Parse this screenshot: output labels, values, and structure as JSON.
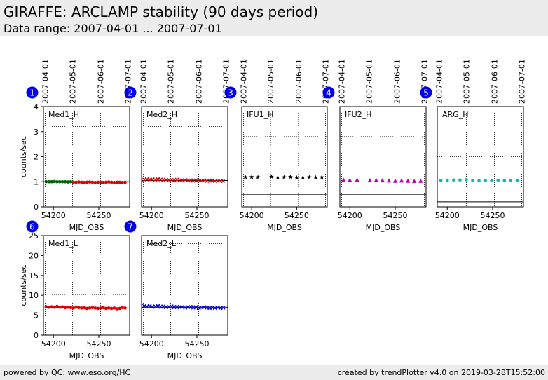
{
  "header": {
    "title": "GIRAFFE: ARCLAMP stability (90 days period)",
    "subtitle": "Data range: 2007-04-01 ... 2007-07-01"
  },
  "footer": {
    "left": "powered by QC: www.eso.org/HC",
    "right": "created by trendPlotter v4.0 on 2019-03-28T15:52:00"
  },
  "colors": {
    "badge": "#0000ee",
    "Med1_H": "#006400",
    "Med2_H": "#dd0000",
    "IFU1_H": "#000000",
    "IFU2_H": "#bb00bb",
    "ARG_H": "#00bbbb",
    "Med1_L": "#dd0000",
    "Med2_L": "#0000cc"
  },
  "chart_data": [
    {
      "type": "scatter",
      "badge": "1",
      "label": "Med1_H",
      "marker": "circle",
      "xlabel": "MJD_OBS",
      "ylabel": "counts/sec",
      "xlim": [
        54189,
        54284
      ],
      "ylim": [
        0,
        4
      ],
      "xticks": [
        54200,
        54250
      ],
      "yticks": [
        0,
        1,
        2,
        3,
        4
      ],
      "date_ticks": [
        {
          "label": "2007-04-01",
          "x": 54191
        },
        {
          "label": "2007-05-01",
          "x": 54221
        },
        {
          "label": "2007-06-01",
          "x": 54252
        },
        {
          "label": "2007-07-01",
          "x": 54282
        }
      ],
      "hlines": [
        1.0,
        3.2
      ],
      "x": [
        54192,
        54195,
        54198,
        54201,
        54204,
        54207,
        54210,
        54213,
        54216,
        54219,
        54222,
        54225,
        54228,
        54231,
        54234,
        54237,
        54240,
        54243,
        54246,
        54249,
        54252,
        54255,
        54258,
        54261,
        54264,
        54267,
        54270,
        54273,
        54276,
        54279
      ],
      "y": [
        1.0,
        1.0,
        1.0,
        1.01,
        1.0,
        1.0,
        1.0,
        1.0,
        0.99,
        1.0,
        0.98,
        0.98,
        0.99,
        0.98,
        0.97,
        0.98,
        0.99,
        0.98,
        0.97,
        0.98,
        0.98,
        0.97,
        0.98,
        0.99,
        0.98,
        0.97,
        0.98,
        0.98,
        0.97,
        0.98
      ],
      "colors": [
        "#006400",
        "#006400",
        "#006400",
        "#006400",
        "#006400",
        "#006400",
        "#006400",
        "#006400",
        "#006400",
        "#006400",
        "#dd0000",
        "#dd0000",
        "#dd0000",
        "#dd0000",
        "#dd0000",
        "#dd0000",
        "#dd0000",
        "#dd0000",
        "#dd0000",
        "#dd0000",
        "#dd0000",
        "#dd0000",
        "#dd0000",
        "#dd0000",
        "#dd0000",
        "#dd0000",
        "#dd0000",
        "#dd0000",
        "#dd0000",
        "#dd0000"
      ]
    },
    {
      "type": "scatter",
      "badge": "2",
      "label": "Med2_H",
      "marker": "x",
      "xlabel": "MJD_OBS",
      "ylabel": "",
      "xlim": [
        54189,
        54284
      ],
      "ylim": [
        0,
        4
      ],
      "xticks": [
        54200,
        54250
      ],
      "yticks": [],
      "date_ticks": [
        {
          "label": "2007-04-01",
          "x": 54191
        },
        {
          "label": "2007-05-01",
          "x": 54221
        },
        {
          "label": "2007-06-01",
          "x": 54252
        },
        {
          "label": "2007-07-01",
          "x": 54282
        }
      ],
      "hlines": [
        1.05,
        3.2
      ],
      "x": [
        54192,
        54195,
        54198,
        54201,
        54204,
        54207,
        54210,
        54213,
        54216,
        54219,
        54222,
        54225,
        54228,
        54231,
        54234,
        54237,
        54240,
        54243,
        54246,
        54249,
        54252,
        54255,
        54258,
        54261,
        54264,
        54267,
        54270,
        54273,
        54276,
        54279
      ],
      "y": [
        1.08,
        1.1,
        1.09,
        1.1,
        1.08,
        1.1,
        1.09,
        1.07,
        1.08,
        1.06,
        1.07,
        1.06,
        1.08,
        1.05,
        1.06,
        1.07,
        1.05,
        1.06,
        1.04,
        1.05,
        1.06,
        1.04,
        1.05,
        1.03,
        1.04,
        1.05,
        1.03,
        1.04,
        1.03,
        1.04
      ],
      "colors": [
        "#dd0000"
      ]
    },
    {
      "type": "scatter",
      "badge": "3",
      "label": "IFU1_H",
      "marker": "star",
      "xlabel": "MJD_OBS",
      "ylabel": "",
      "xlim": [
        54189,
        54284
      ],
      "ylim": [
        0,
        4
      ],
      "xticks": [
        54200,
        54250
      ],
      "yticks": [],
      "date_ticks": [
        {
          "label": "2007-04-01",
          "x": 54191
        },
        {
          "label": "2007-05-01",
          "x": 54221
        },
        {
          "label": "2007-06-01",
          "x": 54252
        },
        {
          "label": "2007-07-01",
          "x": 54282
        }
      ],
      "hlines": [
        0.5,
        2.8
      ],
      "x": [
        54193,
        54200,
        54207,
        54222,
        54229,
        54236,
        54243,
        54250,
        54257,
        54264,
        54271,
        54278
      ],
      "y": [
        1.18,
        1.19,
        1.18,
        1.2,
        1.17,
        1.18,
        1.19,
        1.16,
        1.17,
        1.18,
        1.17,
        1.18
      ],
      "colors": [
        "#000000"
      ]
    },
    {
      "type": "scatter",
      "badge": "4",
      "label": "IFU2_H",
      "marker": "triangle",
      "xlabel": "MJD_OBS",
      "ylabel": "",
      "xlim": [
        54189,
        54284
      ],
      "ylim": [
        0,
        4
      ],
      "xticks": [
        54200,
        54250
      ],
      "yticks": [],
      "date_ticks": [
        {
          "label": "2007-04-01",
          "x": 54191
        },
        {
          "label": "2007-05-01",
          "x": 54221
        },
        {
          "label": "2007-06-01",
          "x": 54252
        },
        {
          "label": "2007-07-01",
          "x": 54282
        }
      ],
      "hlines": [
        0.5,
        2.8
      ],
      "x": [
        54193,
        54200,
        54208,
        54222,
        54229,
        54236,
        54243,
        54250,
        54257,
        54264,
        54271,
        54278
      ],
      "y": [
        1.07,
        1.06,
        1.07,
        1.05,
        1.06,
        1.05,
        1.04,
        1.03,
        1.04,
        1.03,
        1.02,
        1.03
      ],
      "colors": [
        "#bb00bb"
      ]
    },
    {
      "type": "scatter",
      "badge": "5",
      "label": "ARG_H",
      "marker": "circle",
      "xlabel": "MJD_OBS",
      "ylabel": "",
      "xlim": [
        54189,
        54284
      ],
      "ylim": [
        0,
        4
      ],
      "xticks": [
        54200,
        54250
      ],
      "yticks": [],
      "date_ticks": [
        {
          "label": "2007-04-01",
          "x": 54191
        },
        {
          "label": "2007-05-01",
          "x": 54221
        },
        {
          "label": "2007-06-01",
          "x": 54252
        },
        {
          "label": "2007-07-01",
          "x": 54282
        }
      ],
      "hlines": [
        0.2,
        2.0
      ],
      "x": [
        54193,
        54200,
        54207,
        54214,
        54221,
        54228,
        54235,
        54242,
        54249,
        54256,
        54263,
        54270,
        54277
      ],
      "y": [
        1.05,
        1.06,
        1.07,
        1.07,
        1.08,
        1.05,
        1.04,
        1.05,
        1.04,
        1.06,
        1.05,
        1.04,
        1.05
      ],
      "colors": [
        "#00bbbb"
      ]
    },
    {
      "type": "scatter",
      "badge": "6",
      "label": "Med1_L",
      "marker": "circle",
      "xlabel": "MJD_OBS",
      "ylabel": "counts/sec",
      "xlim": [
        54189,
        54284
      ],
      "ylim": [
        0,
        25
      ],
      "xticks": [
        54200,
        54250
      ],
      "yticks": [
        0,
        5,
        10,
        15,
        20,
        25
      ],
      "date_ticks": [
        {
          "x": 54191
        },
        {
          "x": 54221
        },
        {
          "x": 54252
        },
        {
          "x": 54282
        }
      ],
      "hlines": [
        6.8,
        10.2
      ],
      "x": [
        54192,
        54195,
        54198,
        54201,
        54204,
        54207,
        54210,
        54213,
        54216,
        54219,
        54222,
        54225,
        54228,
        54231,
        54234,
        54237,
        54240,
        54243,
        54246,
        54249,
        54252,
        54255,
        54258,
        54261,
        54264,
        54267,
        54270,
        54273,
        54276,
        54279
      ],
      "y": [
        7.1,
        7.0,
        7.1,
        7.0,
        7.2,
        7.0,
        7.1,
        6.9,
        7.0,
        6.9,
        6.8,
        7.0,
        6.9,
        6.8,
        6.9,
        6.7,
        6.8,
        6.9,
        6.8,
        6.7,
        6.8,
        6.9,
        6.7,
        6.8,
        6.7,
        6.8,
        6.6,
        6.7,
        6.9,
        6.8
      ],
      "colors": [
        "#dd0000"
      ]
    },
    {
      "type": "scatter",
      "badge": "7",
      "label": "Med2_L",
      "marker": "x",
      "xlabel": "MJD_OBS",
      "ylabel": "",
      "xlim": [
        54189,
        54284
      ],
      "ylim": [
        0,
        25
      ],
      "xticks": [
        54200,
        54250
      ],
      "yticks": [],
      "date_ticks": [
        {
          "x": 54191
        },
        {
          "x": 54221
        },
        {
          "x": 54252
        },
        {
          "x": 54282
        }
      ],
      "hlines": [
        7.0,
        23.0
      ],
      "x": [
        54192,
        54195,
        54198,
        54201,
        54204,
        54207,
        54210,
        54213,
        54216,
        54219,
        54222,
        54225,
        54228,
        54231,
        54234,
        54237,
        54240,
        54243,
        54246,
        54249,
        54252,
        54255,
        54258,
        54261,
        54264,
        54267,
        54270,
        54273,
        54276,
        54279
      ],
      "y": [
        7.3,
        7.2,
        7.3,
        7.1,
        7.2,
        7.3,
        7.1,
        7.2,
        7.0,
        7.1,
        7.2,
        7.0,
        7.1,
        7.0,
        7.1,
        6.9,
        7.0,
        7.1,
        6.9,
        7.0,
        6.8,
        6.9,
        7.0,
        6.9,
        6.8,
        6.9,
        6.8,
        6.9,
        6.8,
        6.9
      ],
      "colors": [
        "#0000cc"
      ]
    }
  ]
}
